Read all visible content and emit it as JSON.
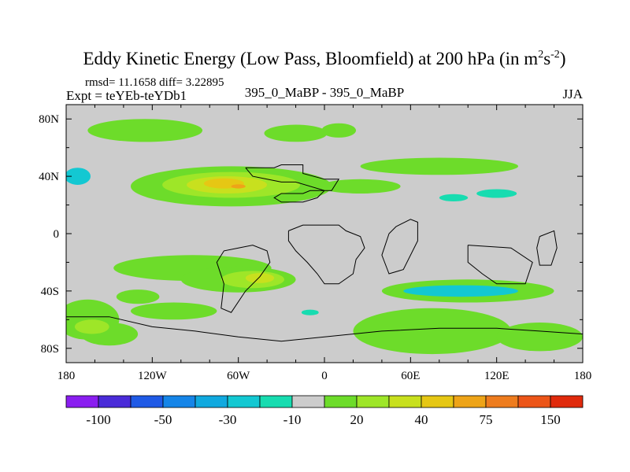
{
  "chart_data": {
    "type": "heatmap",
    "title": "Eddy Kinetic Energy (Low Pass, Bloomfield) at 200 hPa (in m",
    "title_units": {
      "sup1": "2",
      "mid": "s",
      "sup2": "-2",
      "close": ")"
    },
    "stats": "rmsd= 11.1658 diff= 3.22895",
    "expt": "Expt = teYEb-teYDb1",
    "center_label": "395_0_MaBP - 395_0_MaBP",
    "season": "JJA",
    "x_ticks": [
      {
        "value": -180,
        "label": "180"
      },
      {
        "value": -120,
        "label": "120W"
      },
      {
        "value": -60,
        "label": "60W"
      },
      {
        "value": 0,
        "label": "0"
      },
      {
        "value": 60,
        "label": "60E"
      },
      {
        "value": 120,
        "label": "120E"
      },
      {
        "value": 180,
        "label": "180"
      }
    ],
    "y_ticks": [
      {
        "value": 80,
        "label": "80N"
      },
      {
        "value": 40,
        "label": "40N"
      },
      {
        "value": 0,
        "label": "0"
      },
      {
        "value": -40,
        "label": "40S"
      },
      {
        "value": -80,
        "label": "80S"
      }
    ],
    "xlim": [
      -180,
      180
    ],
    "ylim": [
      -90,
      90
    ],
    "colorbar": {
      "colors": [
        "#8a1ef0",
        "#4a2bd8",
        "#1f5ae6",
        "#1585e8",
        "#10a9df",
        "#13c8d2",
        "#17dcb0",
        "#cccccc",
        "#6ddc2a",
        "#9ee628",
        "#c8e01e",
        "#e6c714",
        "#eea418",
        "#ee7c1e",
        "#ec5518",
        "#e02a0c"
      ],
      "labels": [
        {
          "boundary": 1,
          "text": "-100"
        },
        {
          "boundary": 3,
          "text": "-50"
        },
        {
          "boundary": 5,
          "text": "-30"
        },
        {
          "boundary": 7,
          "text": "-10"
        },
        {
          "boundary": 9,
          "text": "20"
        },
        {
          "boundary": 11,
          "text": "40"
        },
        {
          "boundary": 13,
          "text": "75"
        },
        {
          "boundary": 15,
          "text": "150"
        }
      ]
    },
    "field_colors": {
      "background": "#cccccc",
      "low_neg": "#17dcb0",
      "neg": "#13c8d2",
      "pos_low": "#6ddc2a",
      "pos_mid": "#9ee628",
      "pos_high": "#c8e01e",
      "peak": "#e6c714",
      "peak_core": "#eea418"
    },
    "regions": [
      {
        "lon": -125,
        "lat": 72,
        "rlon": 40,
        "rlat": 8,
        "level": "pos_low"
      },
      {
        "lon": -20,
        "lat": 70,
        "rlon": 22,
        "rlat": 6,
        "level": "pos_low"
      },
      {
        "lon": 10,
        "lat": 72,
        "rlon": 12,
        "rlat": 5,
        "level": "pos_low"
      },
      {
        "lon": -65,
        "lat": 33,
        "rlon": 70,
        "rlat": 14,
        "level": "pos_low"
      },
      {
        "lon": -65,
        "lat": 34,
        "rlon": 48,
        "rlat": 9,
        "level": "pos_mid"
      },
      {
        "lon": -68,
        "lat": 34,
        "rlon": 28,
        "rlat": 6,
        "level": "pos_high"
      },
      {
        "lon": -70,
        "lat": 35,
        "rlon": 14,
        "rlat": 3.5,
        "level": "peak"
      },
      {
        "lon": -60,
        "lat": 33,
        "rlon": 5,
        "rlat": 1.5,
        "level": "peak_core"
      },
      {
        "lon": -172,
        "lat": 40,
        "rlon": 9,
        "rlat": 6,
        "level": "neg"
      },
      {
        "lon": 25,
        "lat": 33,
        "rlon": 28,
        "rlat": 5,
        "level": "pos_low"
      },
      {
        "lon": 80,
        "lat": 47,
        "rlon": 55,
        "rlat": 6,
        "level": "pos_low"
      },
      {
        "lon": 120,
        "lat": 28,
        "rlon": 14,
        "rlat": 3,
        "level": "low_neg"
      },
      {
        "lon": 90,
        "lat": 25,
        "rlon": 10,
        "rlat": 2.5,
        "level": "low_neg"
      },
      {
        "lon": -92,
        "lat": -24,
        "rlon": 55,
        "rlat": 9,
        "level": "pos_low"
      },
      {
        "lon": -60,
        "lat": -32,
        "rlon": 40,
        "rlat": 9,
        "level": "pos_low"
      },
      {
        "lon": -50,
        "lat": -32,
        "rlon": 22,
        "rlat": 6,
        "level": "pos_mid"
      },
      {
        "lon": -45,
        "lat": -31,
        "rlon": 10,
        "rlat": 3.5,
        "level": "pos_high"
      },
      {
        "lon": -130,
        "lat": -44,
        "rlon": 15,
        "rlat": 5,
        "level": "pos_low"
      },
      {
        "lon": -105,
        "lat": -54,
        "rlon": 30,
        "rlat": 6,
        "level": "pos_low"
      },
      {
        "lon": -165,
        "lat": -60,
        "rlon": 22,
        "rlat": 14,
        "level": "pos_low"
      },
      {
        "lon": -150,
        "lat": -70,
        "rlon": 20,
        "rlat": 8,
        "level": "pos_low"
      },
      {
        "lon": -162,
        "lat": -65,
        "rlon": 12,
        "rlat": 5,
        "level": "pos_mid"
      },
      {
        "lon": 100,
        "lat": -40,
        "rlon": 60,
        "rlat": 8,
        "level": "pos_low"
      },
      {
        "lon": 95,
        "lat": -40,
        "rlon": 40,
        "rlat": 4,
        "level": "neg"
      },
      {
        "lon": 75,
        "lat": -68,
        "rlon": 55,
        "rlat": 16,
        "level": "pos_low"
      },
      {
        "lon": 150,
        "lat": -72,
        "rlon": 30,
        "rlat": 10,
        "level": "pos_low"
      },
      {
        "lon": -10,
        "lat": -55,
        "rlon": 6,
        "rlat": 2,
        "level": "low_neg"
      }
    ],
    "coastlines": [
      [
        [
          -55,
          46
        ],
        [
          -35,
          46
        ],
        [
          -30,
          48
        ],
        [
          -15,
          48
        ],
        [
          -15,
          42
        ],
        [
          0,
          38
        ],
        [
          10,
          38
        ],
        [
          5,
          30
        ],
        [
          -10,
          30
        ],
        [
          -15,
          28
        ],
        [
          -30,
          28
        ],
        [
          -35,
          25
        ],
        [
          -30,
          22
        ],
        [
          -15,
          22
        ],
        [
          -5,
          25
        ],
        [
          0,
          30
        ],
        [
          -20,
          36
        ],
        [
          -30,
          36
        ],
        [
          -40,
          38
        ],
        [
          -50,
          40
        ],
        [
          -55,
          46
        ]
      ],
      [
        [
          -25,
          2
        ],
        [
          -15,
          6
        ],
        [
          10,
          6
        ],
        [
          15,
          2
        ],
        [
          25,
          -2
        ],
        [
          28,
          -10
        ],
        [
          22,
          -18
        ],
        [
          20,
          -28
        ],
        [
          10,
          -35
        ],
        [
          0,
          -35
        ],
        [
          -5,
          -28
        ],
        [
          -12,
          -20
        ],
        [
          -20,
          -12
        ],
        [
          -25,
          -5
        ],
        [
          -25,
          2
        ]
      ],
      [
        [
          -60,
          -10
        ],
        [
          -50,
          -8
        ],
        [
          -40,
          -12
        ],
        [
          -38,
          -20
        ],
        [
          -45,
          -30
        ],
        [
          -55,
          -40
        ],
        [
          -65,
          -55
        ],
        [
          -72,
          -52
        ],
        [
          -70,
          -35
        ],
        [
          -75,
          -20
        ],
        [
          -70,
          -12
        ],
        [
          -60,
          -10
        ]
      ],
      [
        [
          50,
          5
        ],
        [
          60,
          10
        ],
        [
          65,
          8
        ],
        [
          65,
          -5
        ],
        [
          55,
          -25
        ],
        [
          45,
          -28
        ],
        [
          40,
          -15
        ],
        [
          45,
          0
        ],
        [
          50,
          5
        ]
      ],
      [
        [
          100,
          -8
        ],
        [
          130,
          -10
        ],
        [
          145,
          -20
        ],
        [
          140,
          -35
        ],
        [
          120,
          -35
        ],
        [
          110,
          -28
        ],
        [
          100,
          -20
        ],
        [
          100,
          -8
        ]
      ],
      [
        [
          150,
          -2
        ],
        [
          160,
          2
        ],
        [
          162,
          -10
        ],
        [
          158,
          -22
        ],
        [
          150,
          -22
        ],
        [
          148,
          -10
        ],
        [
          150,
          -2
        ]
      ],
      [
        [
          -180,
          -58
        ],
        [
          -150,
          -58
        ],
        [
          -120,
          -65
        ],
        [
          -90,
          -68
        ],
        [
          -60,
          -72
        ],
        [
          -30,
          -75
        ],
        [
          0,
          -72
        ],
        [
          40,
          -68
        ],
        [
          80,
          -66
        ],
        [
          120,
          -66
        ],
        [
          150,
          -68
        ],
        [
          180,
          -70
        ]
      ]
    ]
  }
}
